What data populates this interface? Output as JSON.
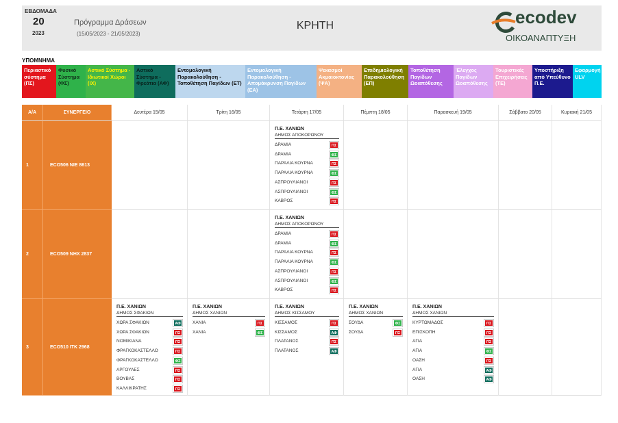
{
  "header": {
    "week_label": "ΕΒΔΟΜΑΔΑ",
    "week_number": "20",
    "year": "2023",
    "program_title": "Πρόγραμμα Δράσεων",
    "date_range": "(15/05/2023 - 21/05/2023)",
    "region": "ΚΡΗΤΗ",
    "logo_name": "ecodev",
    "logo_subtitle": "ΟΙΚΟΑΝΑΠΤΥΞΗ"
  },
  "legend": {
    "title": "ΥΠΟΜΝΗΜΑ",
    "items": [
      {
        "label": "Περιαστικό σύστημα (ΠΣ)",
        "color": "#e3161d",
        "text_color": "#ffffff"
      },
      {
        "label": "Φυσικό Σύστημα (ΦΣ)",
        "color": "#2fb24a",
        "text_color": "#10301a"
      },
      {
        "label": "Αστικό Σύστημα - Ιδιωτικοί Χώροι (ΙΧ)",
        "color": "#44b649",
        "text_color": "#fff200"
      },
      {
        "label": "Αστικό Σύστημα - Φρεάτια (ΑΦ)",
        "color": "#0f6d5d",
        "text_color": "#08221c"
      },
      {
        "label": "Εντομολογική Παρακολούθηση - Τοποθέτηση Παγίδων (ΕΤ)",
        "color": "#bdd7ee",
        "text_color": "#111111"
      },
      {
        "label": "Εντομολογική Παρακολούθηση - Απομάκρυνση Παγίδων (ΕΑ)",
        "color": "#9dc3e6",
        "text_color": "#ffffff"
      },
      {
        "label": "Ψεκασμοί Ακμαιοκτονίας (ΨΑ)",
        "color": "#f4b183",
        "text_color": "#ffffff"
      },
      {
        "label": "Επιδημιολογική Παρακολούθηση (ΕΠ)",
        "color": "#7f7f00",
        "text_color": "#ffffff"
      },
      {
        "label": "Τοποθέτηση Παγίδων Ωοαπόθεσης",
        "color": "#b366e3",
        "text_color": "#ffffff"
      },
      {
        "label": "Έλεγχος Παγίδων Ωοαπόθεσης",
        "color": "#dcaaf2",
        "text_color": "#ffffff"
      },
      {
        "label": "Τουριστικές Επιχειρήσεις (ΤΕ)",
        "color": "#f4a7d2",
        "text_color": "#ffffff"
      },
      {
        "label": "Υποστήριξη από Υπεύθυνο Π.Ε.",
        "color": "#1c1a8e",
        "text_color": "#ffffff"
      },
      {
        "label": "Εφαρμογή ULV",
        "color": "#00d3ef",
        "text_color": "#ffffff"
      }
    ]
  },
  "badge_colors": {
    "ΠΣ": "#d9141b",
    "ΦΣ": "#2fb24a",
    "ΑΦ": "#0f6d5d"
  },
  "table": {
    "columns": [
      "Α/Α",
      "ΣΥΝΕΡΓΕΙΟ",
      "Δευτέρα 15/05",
      "Τρίτη 16/05",
      "Τετάρτη 17/05",
      "Πέμπτη 18/05",
      "Παρασκευή 19/05",
      "Σάββατο 20/05",
      "Κυριακή 21/05"
    ],
    "rows": [
      {
        "index": "1",
        "team": "ECO506  ΝΙΕ 8613",
        "cells": [
          null,
          null,
          {
            "unit": "Π.Ε. ΧΑΝΙΩΝ",
            "municipality": "ΔΗΜΟΣ ΑΠΟΚΟΡΩΝΟΥ",
            "items": [
              {
                "place": "ΔΡΑΜΙΑ",
                "badge": "ΠΣ"
              },
              {
                "place": "ΔΡΑΜΙΑ",
                "badge": "ΦΣ"
              },
              {
                "place": "ΠΑΡΑΛΙΑ ΚΟΥΡΝΑ",
                "badge": "ΠΣ"
              },
              {
                "place": "ΠΑΡΑΛΙΑ ΚΟΥΡΝΑ",
                "badge": "ΦΣ"
              },
              {
                "place": "ΑΣΠΡΟΥΛΙΑΝΟΙ",
                "badge": "ΠΣ"
              },
              {
                "place": "ΑΣΠΡΟΥΛΙΑΝΟΙ",
                "badge": "ΦΣ"
              },
              {
                "place": "ΚΑΒΡΟΣ",
                "badge": "ΠΣ"
              }
            ]
          },
          null,
          null,
          null,
          null
        ]
      },
      {
        "index": "2",
        "team": "ECO509  ΝΗΧ 2837",
        "cells": [
          null,
          null,
          {
            "unit": "Π.Ε. ΧΑΝΙΩΝ",
            "municipality": "ΔΗΜΟΣ ΑΠΟΚΟΡΩΝΟΥ",
            "items": [
              {
                "place": "ΔΡΑΜΙΑ",
                "badge": "ΠΣ"
              },
              {
                "place": "ΔΡΑΜΙΑ",
                "badge": "ΦΣ"
              },
              {
                "place": "ΠΑΡΑΛΙΑ ΚΟΥΡΝΑ",
                "badge": "ΠΣ"
              },
              {
                "place": "ΠΑΡΑΛΙΑ ΚΟΥΡΝΑ",
                "badge": "ΦΣ"
              },
              {
                "place": "ΑΣΠΡΟΥΛΙΑΝΟΙ",
                "badge": "ΠΣ"
              },
              {
                "place": "ΑΣΠΡΟΥΛΙΑΝΟΙ",
                "badge": "ΦΣ"
              },
              {
                "place": "ΚΑΒΡΟΣ",
                "badge": "ΠΣ"
              }
            ]
          },
          null,
          null,
          null,
          null
        ]
      },
      {
        "index": "3",
        "team": "ECO510  ΙΤΚ 2968",
        "cells": [
          {
            "unit": "Π.Ε. ΧΑΝΙΩΝ",
            "municipality": "ΔΗΜΟΣ ΣΦΑΚΙΩΝ",
            "items": [
              {
                "place": "ΧΩΡΑ ΣΦΑΚΙΩΝ",
                "badge": "ΑΦ"
              },
              {
                "place": "ΧΩΡΑ ΣΦΑΚΙΩΝ",
                "badge": "ΠΣ"
              },
              {
                "place": "ΝΟΜΙΚΙΑΝΑ",
                "badge": "ΠΣ"
              },
              {
                "place": "ΦΡΑΓΚΟΚΑΣΤΕΛΛΟ",
                "badge": "ΠΣ"
              },
              {
                "place": "ΦΡΑΓΚΟΚΑΣΤΕΛΛΟ",
                "badge": "ΦΣ"
              },
              {
                "place": "ΑΡΓΟΥΛΕΣ",
                "badge": "ΠΣ"
              },
              {
                "place": "ΒΟΥΒΑΣ",
                "badge": "ΠΣ"
              },
              {
                "place": "ΚΑΛΛΙΚΡΑΤΗΣ",
                "badge": "ΠΣ"
              }
            ]
          },
          {
            "unit": "Π.Ε. ΧΑΝΙΩΝ",
            "municipality": "ΔΗΜΟΣ ΧΑΝΙΩΝ",
            "items": [
              {
                "place": "ΧΑΝΙΑ",
                "badge": "ΠΣ"
              },
              {
                "place": "ΧΑΝΙΑ",
                "badge": "ΦΣ"
              }
            ]
          },
          {
            "unit": "Π.Ε. ΧΑΝΙΩΝ",
            "municipality": "ΔΗΜΟΣ ΚΙΣΣΑΜΟΥ",
            "items": [
              {
                "place": "ΚΙΣΣΑΜΟΣ",
                "badge": "ΠΣ"
              },
              {
                "place": "ΚΙΣΣΑΜΟΣ",
                "badge": "ΑΦ"
              },
              {
                "place": "ΠΛΑΤΑΝΟΣ",
                "badge": "ΠΣ"
              },
              {
                "place": "ΠΛΑΤΑΝΟΣ",
                "badge": "ΑΦ"
              }
            ]
          },
          {
            "unit": "Π.Ε. ΧΑΝΙΩΝ",
            "municipality": "ΔΗΜΟΣ ΧΑΝΙΩΝ",
            "items": [
              {
                "place": "ΣΟΥΔΑ",
                "badge": "ΦΣ"
              },
              {
                "place": "ΣΟΥΔΑ",
                "badge": "ΠΣ"
              }
            ]
          },
          {
            "unit": "Π.Ε. ΧΑΝΙΩΝ",
            "municipality": "ΔΗΜΟΣ ΧΑΝΙΩΝ",
            "items": [
              {
                "place": "ΚΥΡΤΩΜΑΔΟΣ",
                "badge": "ΠΣ"
              },
              {
                "place": "ΕΠΙΣΚΟΠΗ",
                "badge": "ΠΣ"
              },
              {
                "place": "ΑΓΙΑ",
                "badge": "ΠΣ"
              },
              {
                "place": "ΑΓΙΑ",
                "badge": "ΦΣ"
              },
              {
                "place": "ΟΑΣΗ",
                "badge": "ΠΣ"
              },
              {
                "place": "ΑΓΙΑ",
                "badge": "ΑΦ"
              },
              {
                "place": "ΟΑΣΗ",
                "badge": "ΑΦ"
              }
            ]
          },
          null,
          null
        ]
      }
    ]
  }
}
